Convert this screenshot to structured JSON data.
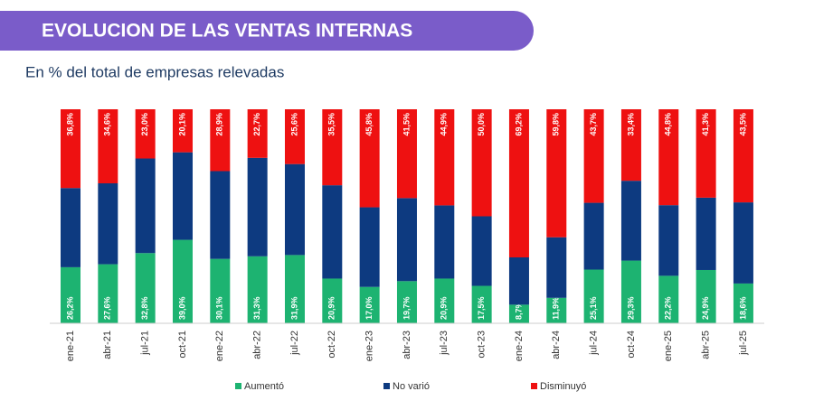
{
  "chart_data": {
    "type": "stacked_bar",
    "title": "EVOLUCION DE LAS VENTAS INTERNAS",
    "subtitle": "En % del total de empresas relevadas",
    "categories": [
      "ene-21",
      "abr-21",
      "jul-21",
      "oct-21",
      "ene-22",
      "abr-22",
      "jul-22",
      "oct-22",
      "ene-23",
      "abr-23",
      "jul-23",
      "oct-23",
      "ene-24",
      "abr-24",
      "jul-24",
      "oct-24",
      "ene-25",
      "abr-25",
      "jul-25"
    ],
    "series": [
      {
        "name": "Aumentó",
        "color": "#1db371",
        "values": [
          26.2,
          27.6,
          32.8,
          39.0,
          30.1,
          31.3,
          31.9,
          20.9,
          17.0,
          19.7,
          20.9,
          17.5,
          8.7,
          11.9,
          25.1,
          29.3,
          22.2,
          24.9,
          18.6
        ],
        "value_labels": [
          "26,2%",
          "27,6%",
          "32,8%",
          "39,0%",
          "30,1%",
          "31,3%",
          "31,9%",
          "20,9%",
          "17,0%",
          "19,7%",
          "20,9%",
          "17,5%",
          "8,7%",
          "11,9%",
          "25,1%",
          "29,3%",
          "22,2%",
          "24,9%",
          "18,6%"
        ]
      },
      {
        "name": "No varió",
        "color": "#0d3a80",
        "values": [
          37.0,
          37.8,
          44.2,
          40.9,
          41.0,
          46.0,
          42.5,
          43.6,
          37.2,
          38.8,
          34.2,
          32.5,
          22.1,
          28.3,
          31.2,
          37.3,
          33.0,
          33.8,
          37.9
        ]
      },
      {
        "name": "Disminuyó",
        "color": "#ee1111",
        "values": [
          36.8,
          34.6,
          23.0,
          20.1,
          28.9,
          22.7,
          25.6,
          35.5,
          45.8,
          41.5,
          44.9,
          50.0,
          69.2,
          59.8,
          43.7,
          33.4,
          44.8,
          41.3,
          43.5
        ],
        "value_labels": [
          "36,8%",
          "34,6%",
          "23,0%",
          "20,1%",
          "28,9%",
          "22,7%",
          "25,6%",
          "35,5%",
          "45,8%",
          "41,5%",
          "44,9%",
          "50,0%",
          "69,2%",
          "59,8%",
          "43,7%",
          "33,4%",
          "44,8%",
          "41,3%",
          "43,5%"
        ]
      }
    ]
  }
}
